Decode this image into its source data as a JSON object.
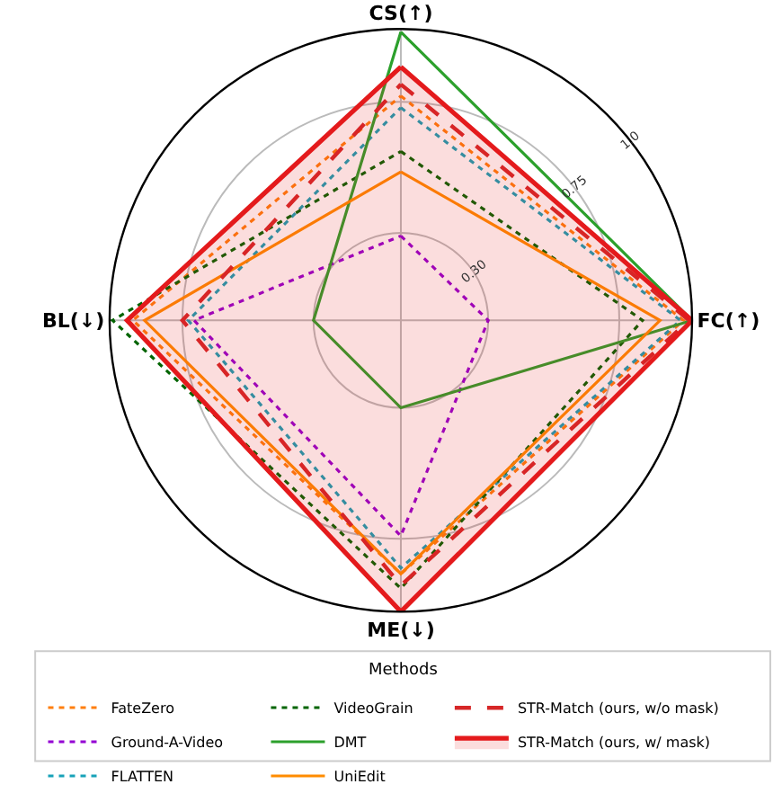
{
  "chart_data": {
    "type": "radar",
    "categories": [
      "CS(↑)",
      "FC(↑)",
      "ME(↓)",
      "BL(↓)"
    ],
    "ylim": [
      0,
      1
    ],
    "yticks": [
      {
        "value": 0.3,
        "label": "0.30"
      },
      {
        "value": 0.75,
        "label": "0.75"
      },
      {
        "value": 1.0,
        "label": "1.0"
      }
    ],
    "grid": true,
    "legend": "bottom",
    "legend_title": "Methods",
    "series": [
      {
        "name": "FateZero",
        "color": "#ff7f0e",
        "line_style": "dotted",
        "values": [
          0.77,
          0.97,
          0.87,
          0.92
        ]
      },
      {
        "name": "Ground-A-Video",
        "color": "#9400d3",
        "line_style": "dotted",
        "values": [
          0.29,
          0.3,
          0.74,
          0.71
        ]
      },
      {
        "name": "FLATTEN",
        "color": "#17a2b8",
        "line_style": "dotted",
        "values": [
          0.73,
          0.96,
          0.85,
          0.73
        ]
      },
      {
        "name": "VideoGrain",
        "color": "#006400",
        "line_style": "dotted",
        "values": [
          0.58,
          0.83,
          0.92,
          0.99
        ]
      },
      {
        "name": "DMT",
        "color": "#2ca02c",
        "line_style": "solid",
        "values": [
          0.99,
          1.0,
          0.3,
          0.3
        ]
      },
      {
        "name": "UniEdit",
        "color": "#ff8c00",
        "line_style": "solid",
        "values": [
          0.51,
          0.89,
          0.87,
          0.88
        ]
      },
      {
        "name": "STR-Match (ours, w/o mask)",
        "color": "#d62728",
        "line_style": "dashed",
        "values": [
          0.81,
          0.99,
          0.91,
          0.75
        ]
      },
      {
        "name": "STR-Match (ours, w/ mask)",
        "color": "#e41a1c",
        "line_style": "solid",
        "type": "area",
        "values": [
          0.87,
          1.0,
          1.0,
          0.94
        ]
      }
    ]
  }
}
